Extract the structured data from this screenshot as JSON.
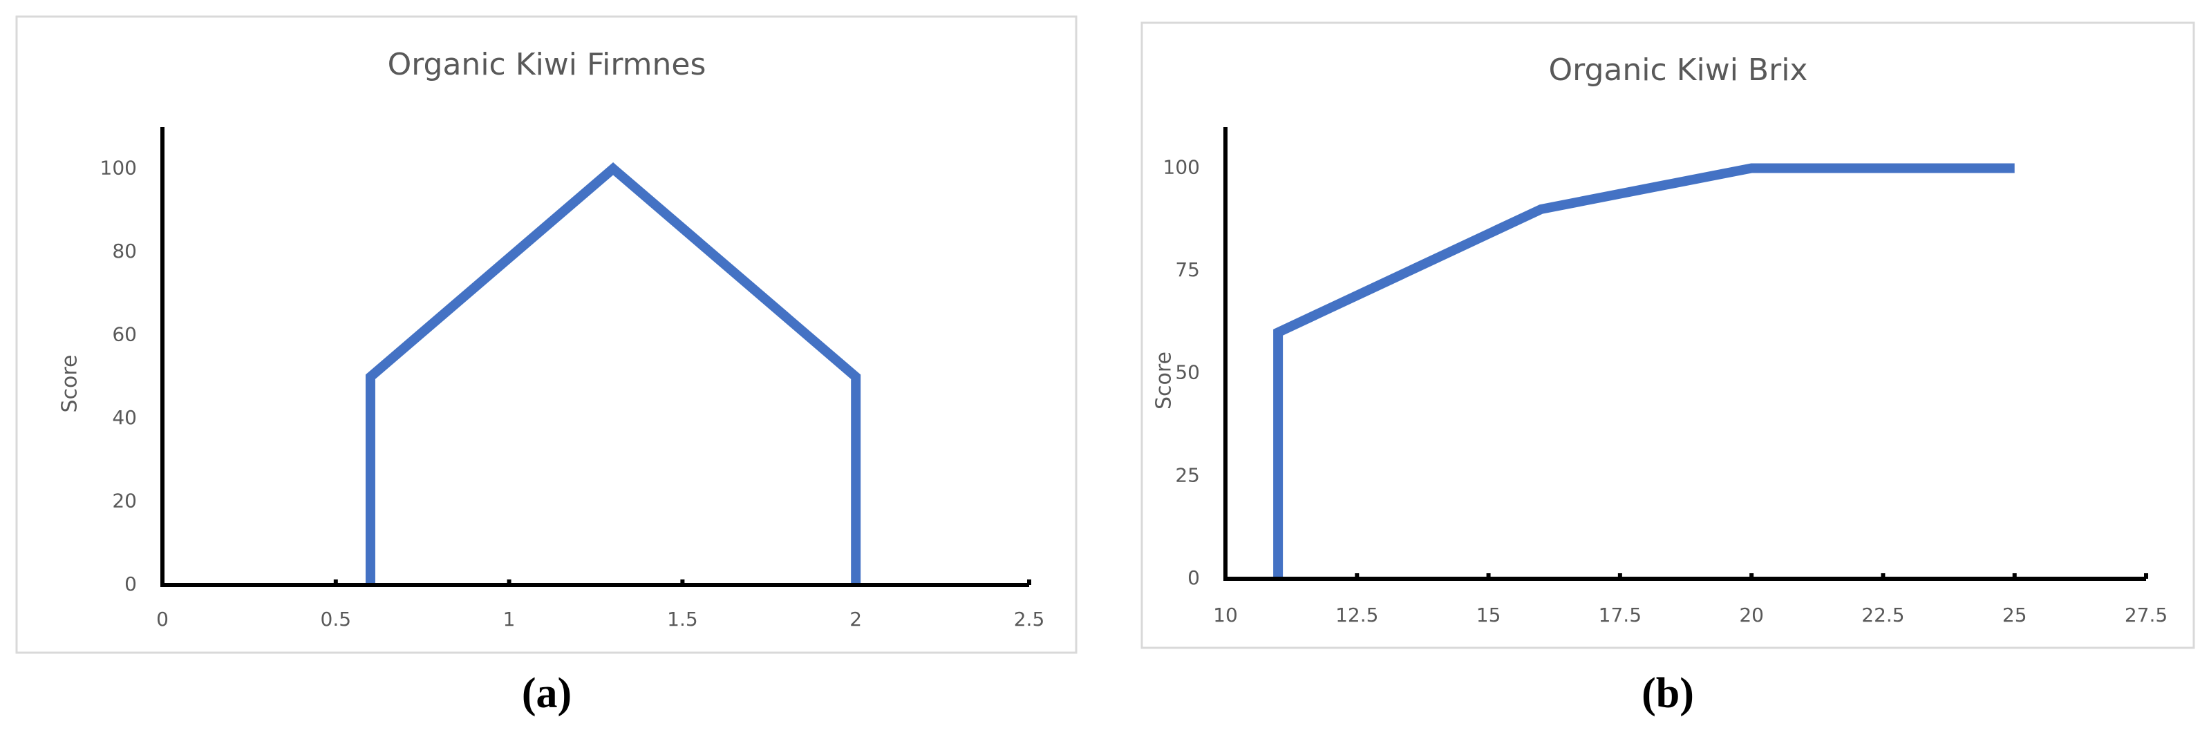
{
  "chart_data": [
    {
      "type": "line",
      "title": "Organic Kiwi Firmnes",
      "y_label": "Score",
      "caption": "(a)",
      "x": [
        0.6,
        0.6,
        1.3,
        2,
        2
      ],
      "values": [
        0,
        50,
        100,
        50,
        0
      ],
      "color": "#4472c4",
      "xlim": [
        0,
        2.5
      ],
      "xticks": [
        0,
        0.5,
        1,
        1.5,
        2,
        2.5
      ],
      "ylim": [
        0,
        110
      ],
      "yticks": [
        0,
        20,
        40,
        60,
        80,
        100
      ]
    },
    {
      "type": "line",
      "title": "Organic Kiwi Brix",
      "y_label": "Score",
      "caption": "(b)",
      "x": [
        11,
        11,
        16,
        20,
        25
      ],
      "values": [
        0,
        60,
        90,
        100,
        100
      ],
      "color": "#4472c4",
      "xlim": [
        10,
        27.5
      ],
      "xticks": [
        10,
        12.5,
        15,
        17.5,
        20,
        22.5,
        25,
        27.5
      ],
      "ylim": [
        0,
        110
      ],
      "yticks": [
        0,
        25,
        50,
        75,
        100
      ]
    }
  ]
}
